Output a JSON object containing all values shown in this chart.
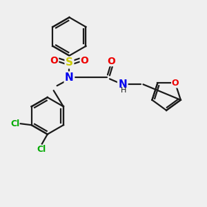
{
  "bg_color": "#efefef",
  "bond_color": "#1a1a1a",
  "atom_colors": {
    "N": "#0000ee",
    "O": "#ee0000",
    "S": "#cccc00",
    "Cl": "#00aa00",
    "H": "#1a1a1a"
  },
  "figsize": [
    3.0,
    3.0
  ],
  "dpi": 100,
  "lw": 1.6
}
